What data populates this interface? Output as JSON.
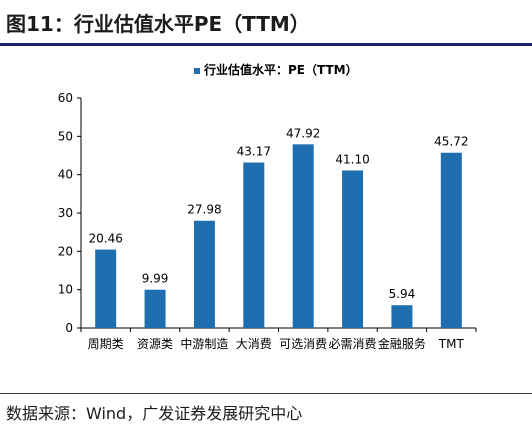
{
  "figure": {
    "title": "图11：行业估值水平PE（TTM）",
    "source": "数据来源：Wind，广发证券发展研究中心"
  },
  "colors": {
    "bar": "#1f6fb0",
    "title_rule": "#1f1f6e"
  },
  "chart_data": {
    "type": "bar",
    "title": "",
    "xlabel": "",
    "ylabel": "",
    "ylim": [
      0,
      60
    ],
    "yticks": [
      0,
      10,
      20,
      30,
      40,
      50,
      60
    ],
    "legend": {
      "position": "top",
      "entries": [
        "行业估值水平：PE（TTM）"
      ]
    },
    "categories": [
      "周期类",
      "资源类",
      "中游制造",
      "大消费",
      "可选消费",
      "必需消费",
      "金融服务",
      "TMT"
    ],
    "series": [
      {
        "name": "行业估值水平：PE（TTM）",
        "values": [
          20.46,
          9.99,
          27.98,
          43.17,
          47.92,
          41.1,
          5.94,
          45.72
        ],
        "labels": [
          "20.46",
          "9.99",
          "27.98",
          "43.17",
          "47.92",
          "41.10",
          "5.94",
          "45.72"
        ]
      }
    ],
    "grid": false
  }
}
